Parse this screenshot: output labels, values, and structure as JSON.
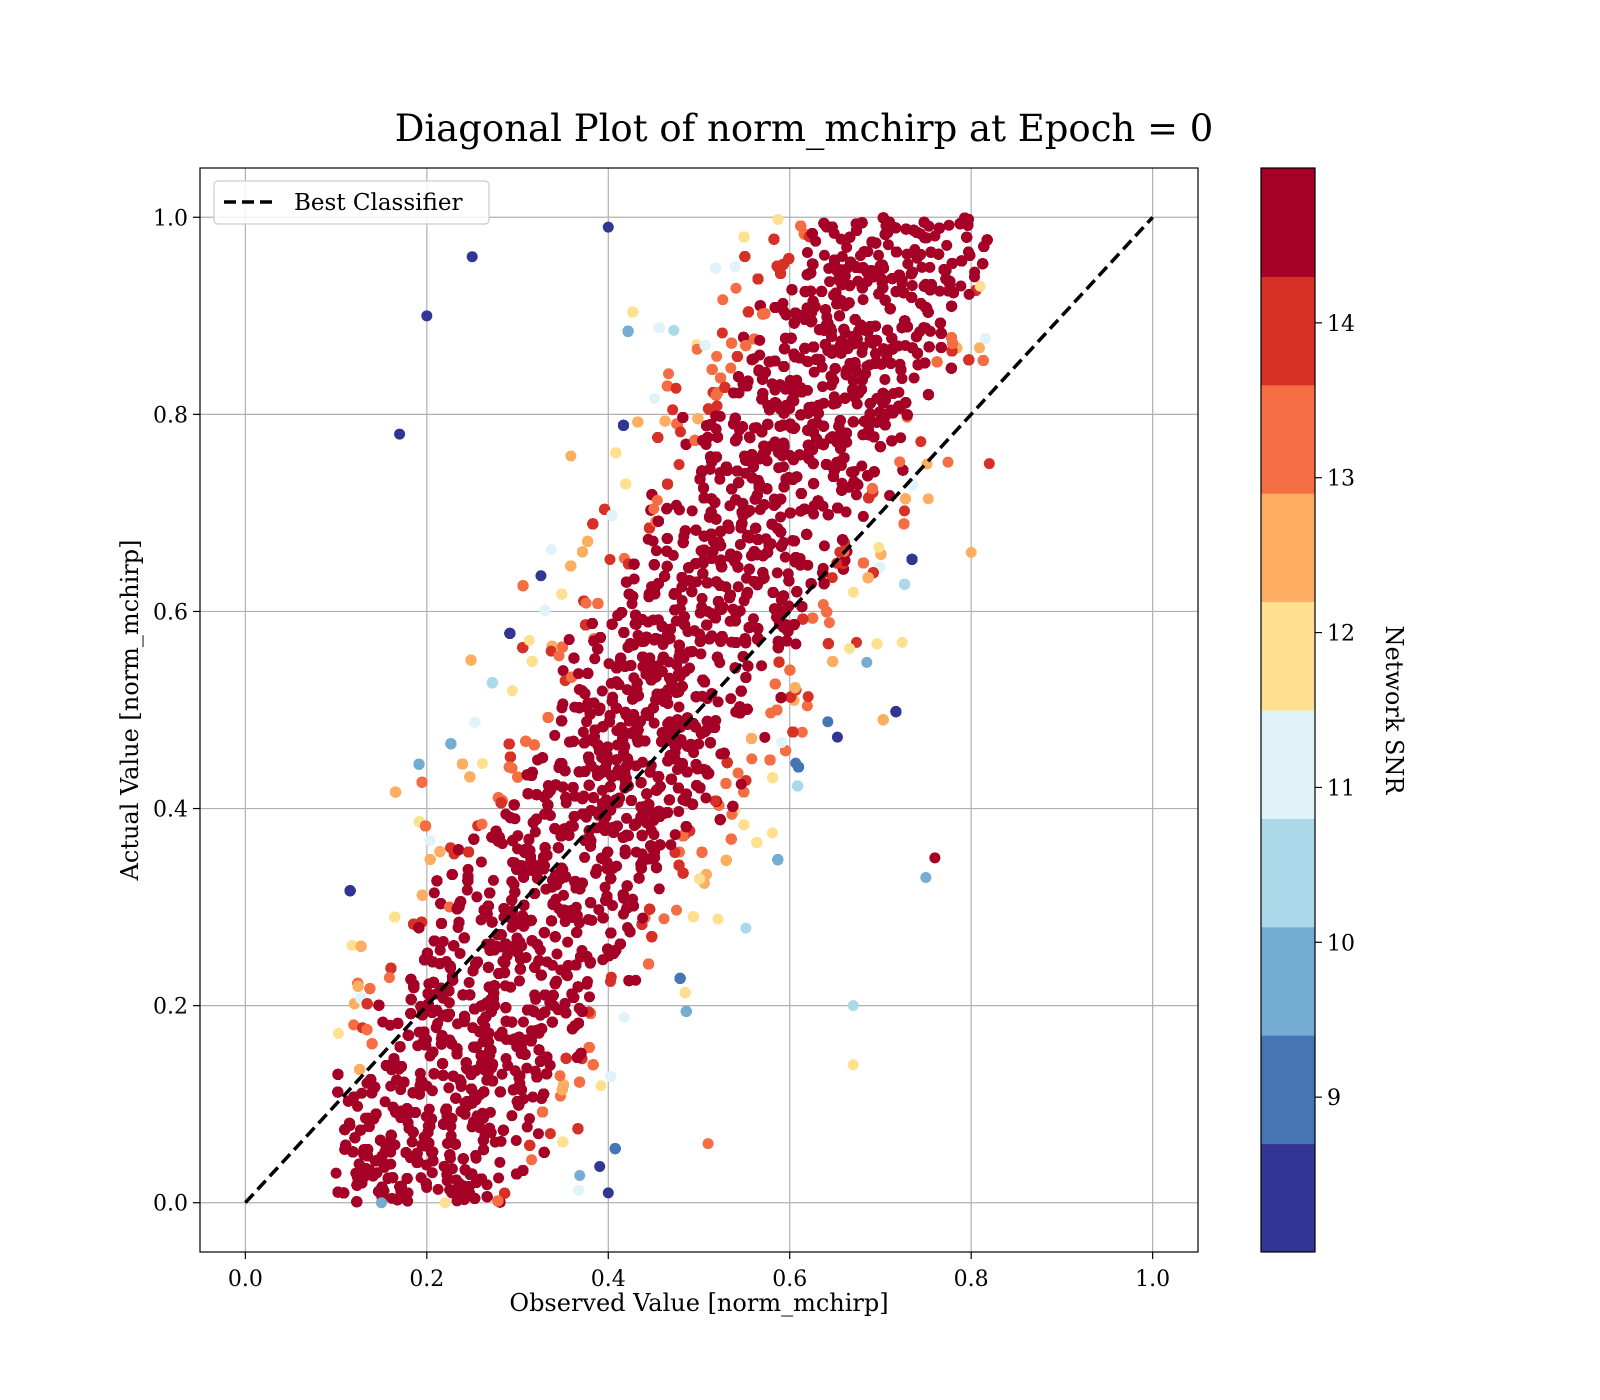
{
  "chart_data": {
    "type": "scatter",
    "title": "Diagonal Plot of norm_mchirp at Epoch = 0",
    "xlabel": "Observed Value [norm_mchirp]",
    "ylabel": "Actual Value [norm_mchirp]",
    "xlim": [
      -0.05,
      1.05
    ],
    "ylim": [
      -0.05,
      1.05
    ],
    "x_ticks": [
      "0.0",
      "0.2",
      "0.4",
      "0.6",
      "0.8",
      "1.0"
    ],
    "y_ticks": [
      "0.0",
      "0.2",
      "0.4",
      "0.6",
      "0.8",
      "1.0"
    ],
    "grid": true,
    "legend": {
      "position": "top-left",
      "entries": [
        {
          "label": "Best Classifier",
          "style": "dashed",
          "color": "#000000"
        }
      ]
    },
    "reference_line": {
      "label": "Best Classifier",
      "x": [
        0.0,
        1.0
      ],
      "y": [
        0.0,
        1.0
      ]
    },
    "colorbar": {
      "label": "Network SNR",
      "range": [
        8.0,
        15.0
      ],
      "ticks": [
        "9",
        "10",
        "11",
        "12",
        "13",
        "14"
      ],
      "colors": [
        "#313695",
        "#4575b4",
        "#74add1",
        "#abd9e9",
        "#e0f3f8",
        "#fee090",
        "#fdae61",
        "#f46d43",
        "#d73027",
        "#a50026"
      ]
    },
    "series": [
      {
        "marker": "circle",
        "color_by": "Network SNR",
        "sample_points": [
          {
            "x": 0.1,
            "y": 0.03,
            "snr": 14.5
          },
          {
            "x": 0.15,
            "y": 0.0,
            "snr": 9.8
          },
          {
            "x": 0.22,
            "y": 0.0,
            "snr": 12.0
          },
          {
            "x": 0.4,
            "y": 0.01,
            "snr": 8.5
          },
          {
            "x": 0.51,
            "y": 0.06,
            "snr": 13.0
          },
          {
            "x": 0.2,
            "y": 0.9,
            "snr": 8.3
          },
          {
            "x": 0.25,
            "y": 0.96,
            "snr": 8.6
          },
          {
            "x": 0.17,
            "y": 0.78,
            "snr": 8.4
          },
          {
            "x": 0.4,
            "y": 0.99,
            "snr": 8.5
          },
          {
            "x": 0.67,
            "y": 0.2,
            "snr": 10.3
          },
          {
            "x": 0.75,
            "y": 0.33,
            "snr": 9.5
          },
          {
            "x": 0.76,
            "y": 0.35,
            "snr": 14.5
          },
          {
            "x": 0.82,
            "y": 0.75,
            "snr": 14.0
          },
          {
            "x": 0.81,
            "y": 0.93,
            "snr": 12.2
          },
          {
            "x": 0.8,
            "y": 0.66,
            "snr": 12.6
          },
          {
            "x": 0.67,
            "y": 0.14,
            "snr": 11.6
          }
        ]
      }
    ]
  }
}
